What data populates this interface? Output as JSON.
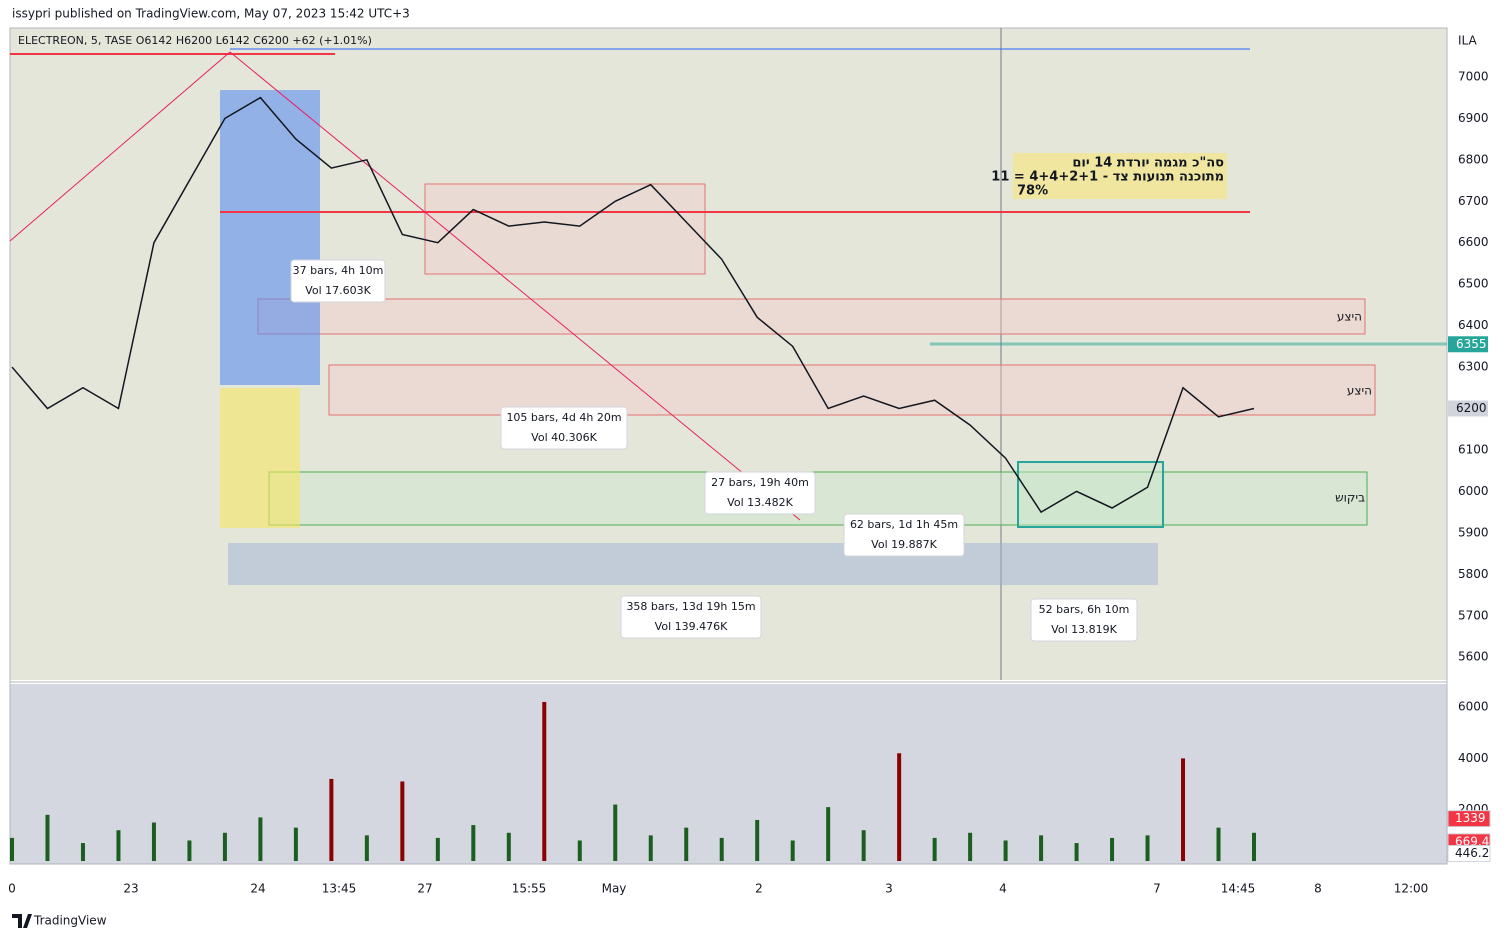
{
  "header": {
    "published": "issypri published on TradingView.com, May 07, 2023 15:42 UTC+3"
  },
  "chart_data": {
    "type": "line",
    "symbol": "ELECTREON, 5, TASE  O6142  H6200  L6142  C6200  +62 (+1.01%)",
    "currency": "ILA",
    "values": [
      6300,
      6200,
      6250,
      6200,
      6600,
      6750,
      6900,
      6950,
      6850,
      6780,
      6800,
      6620,
      6600,
      6680,
      6640,
      6650,
      6640,
      6700,
      6740,
      6650,
      6560,
      6420,
      6350,
      6200,
      6230,
      6200,
      6220,
      6160,
      6080,
      5950,
      6000,
      5960,
      6010,
      6250,
      6180,
      6200
    ],
    "color": "#131722",
    "ylim": [
      5545,
      7118
    ],
    "yticks": [
      5600,
      5700,
      5800,
      5900,
      6000,
      6100,
      6200,
      6300,
      6400,
      6500,
      6600,
      6700,
      6800,
      6900,
      7000
    ],
    "price_labels": [
      6355,
      6200
    ],
    "price_label_colors": [
      "#26a69a",
      "#d1d4dc"
    ],
    "time_labels": [
      "0",
      "23",
      "24",
      "13:45",
      "27",
      "15:55",
      "May",
      "2",
      "3",
      "4",
      "7",
      "14:45",
      "8",
      "12:00"
    ],
    "annotation": [
      "סה\"כ מגמה יורדת 14 יום",
      "11 = 4+4+2+1 - מתוכנה תנועות צד",
      "78%"
    ],
    "zone_labels": [
      "היצע",
      "היצע",
      "ביקוש"
    ],
    "measurements": [
      [
        "37 bars, 4h 10m",
        "Vol 17.603K"
      ],
      [
        "105 bars, 4d 4h 20m",
        "Vol 40.306K"
      ],
      [
        "27 bars, 19h 40m",
        "Vol 13.482K"
      ],
      [
        "62 bars, 1d 1h 45m",
        "Vol 19.887K"
      ],
      [
        "358 bars, 13d 19h 15m",
        "Vol 139.476K"
      ],
      [
        "52 bars, 6h 10m",
        "Vol 13.819K"
      ]
    ],
    "volume": {
      "values": [
        900,
        1800,
        700,
        1200,
        1500,
        800,
        1100,
        1700,
        1300,
        3200,
        1000,
        3100,
        900,
        1400,
        1100,
        6200,
        800,
        2200,
        1000,
        1300,
        900,
        1600,
        800,
        2100,
        1200,
        4200,
        900,
        1100,
        800,
        1000,
        700,
        900,
        1000,
        4000,
        1300,
        1100
      ],
      "color": "#1b5e20",
      "ylim": [
        0,
        6900
      ],
      "yticks": [
        2000,
        4000,
        6000
      ],
      "level_labels": [
        1339,
        669.4,
        446.2
      ],
      "level_colors": [
        "#f23645",
        "#f23645",
        "#ffffff"
      ]
    }
  },
  "footer": {
    "brand": "TradingView"
  }
}
